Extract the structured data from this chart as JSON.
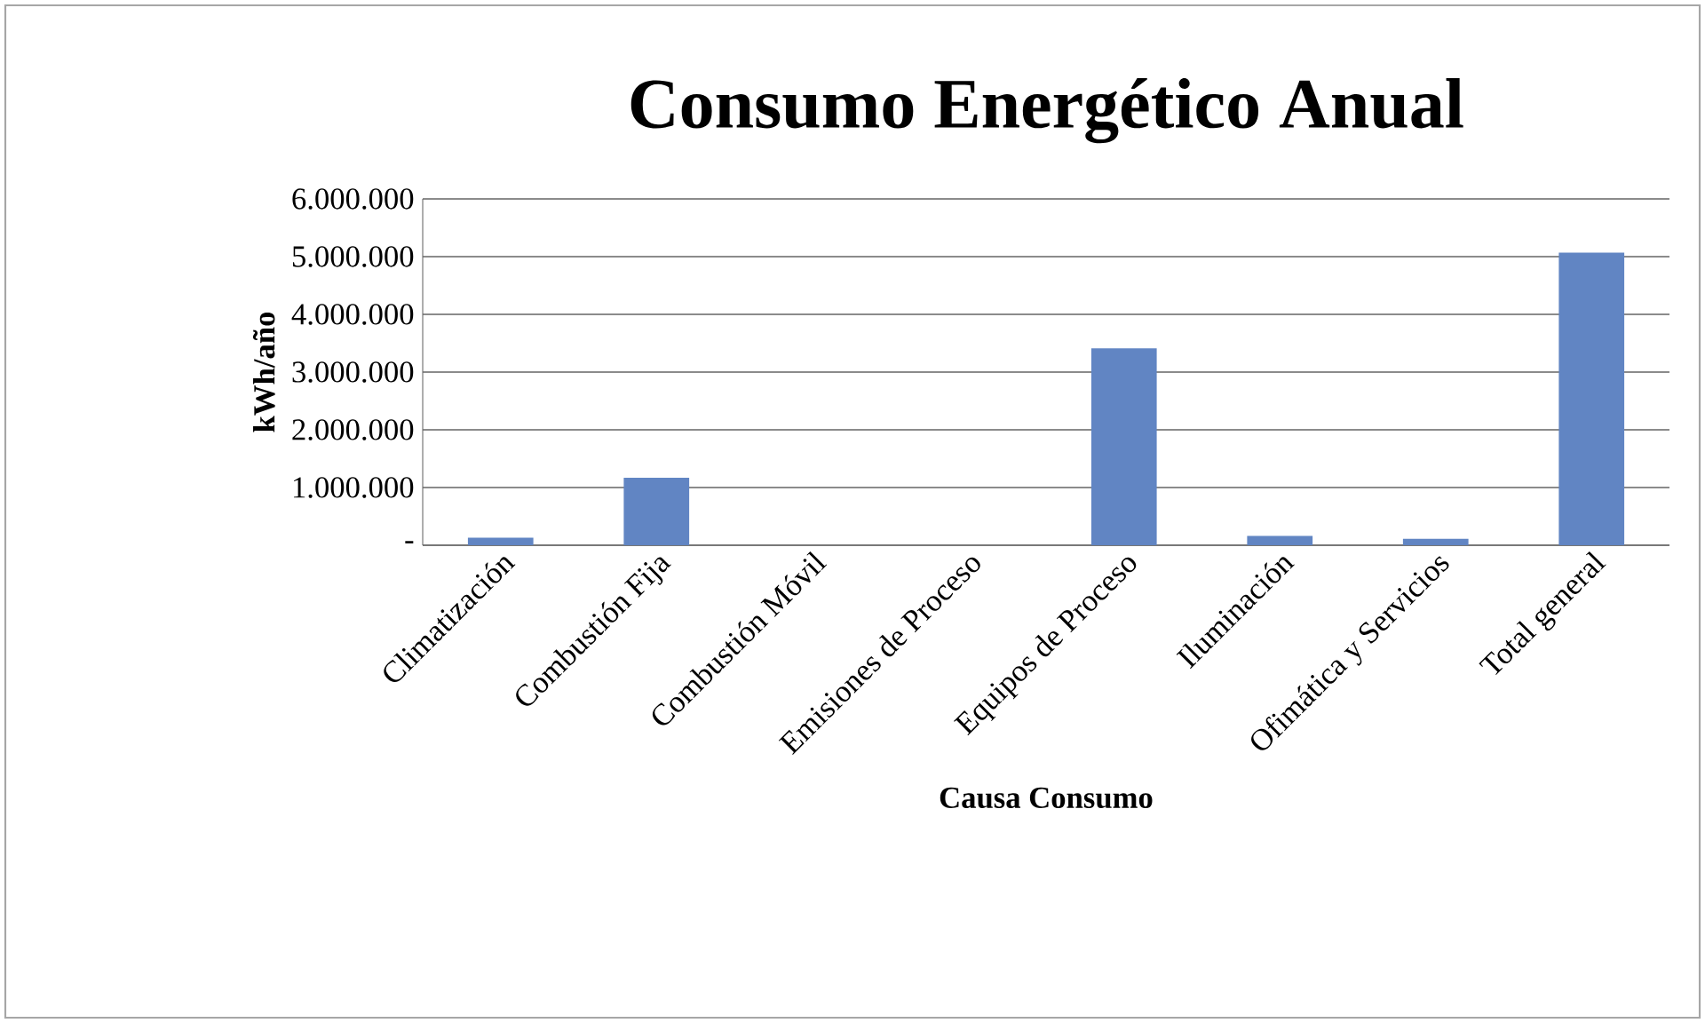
{
  "chart_data": {
    "type": "bar",
    "title": "Consumo Energético Anual",
    "xlabel": "Causa Consumo",
    "ylabel": "kWh/año",
    "categories": [
      "Climatización",
      "Combustión Fija",
      "Combustión Móvil",
      "Emisiones de Proceso",
      "Equipos de Proceso",
      "Iluminación",
      "Ofimática y Servicios",
      "Total general"
    ],
    "values": [
      130000,
      1170000,
      0,
      0,
      3410000,
      160000,
      110000,
      5070000
    ],
    "color": "#6185c3",
    "ylim": [
      0,
      6000000
    ],
    "yticks": [
      {
        "value": 0,
        "label": "-"
      },
      {
        "value": 1000000,
        "label": "1.000.000"
      },
      {
        "value": 2000000,
        "label": "2.000.000"
      },
      {
        "value": 3000000,
        "label": "3.000.000"
      },
      {
        "value": 4000000,
        "label": "4.000.000"
      },
      {
        "value": 5000000,
        "label": "5.000.000"
      },
      {
        "value": 6000000,
        "label": "6.000.000"
      }
    ],
    "grid": "y"
  }
}
